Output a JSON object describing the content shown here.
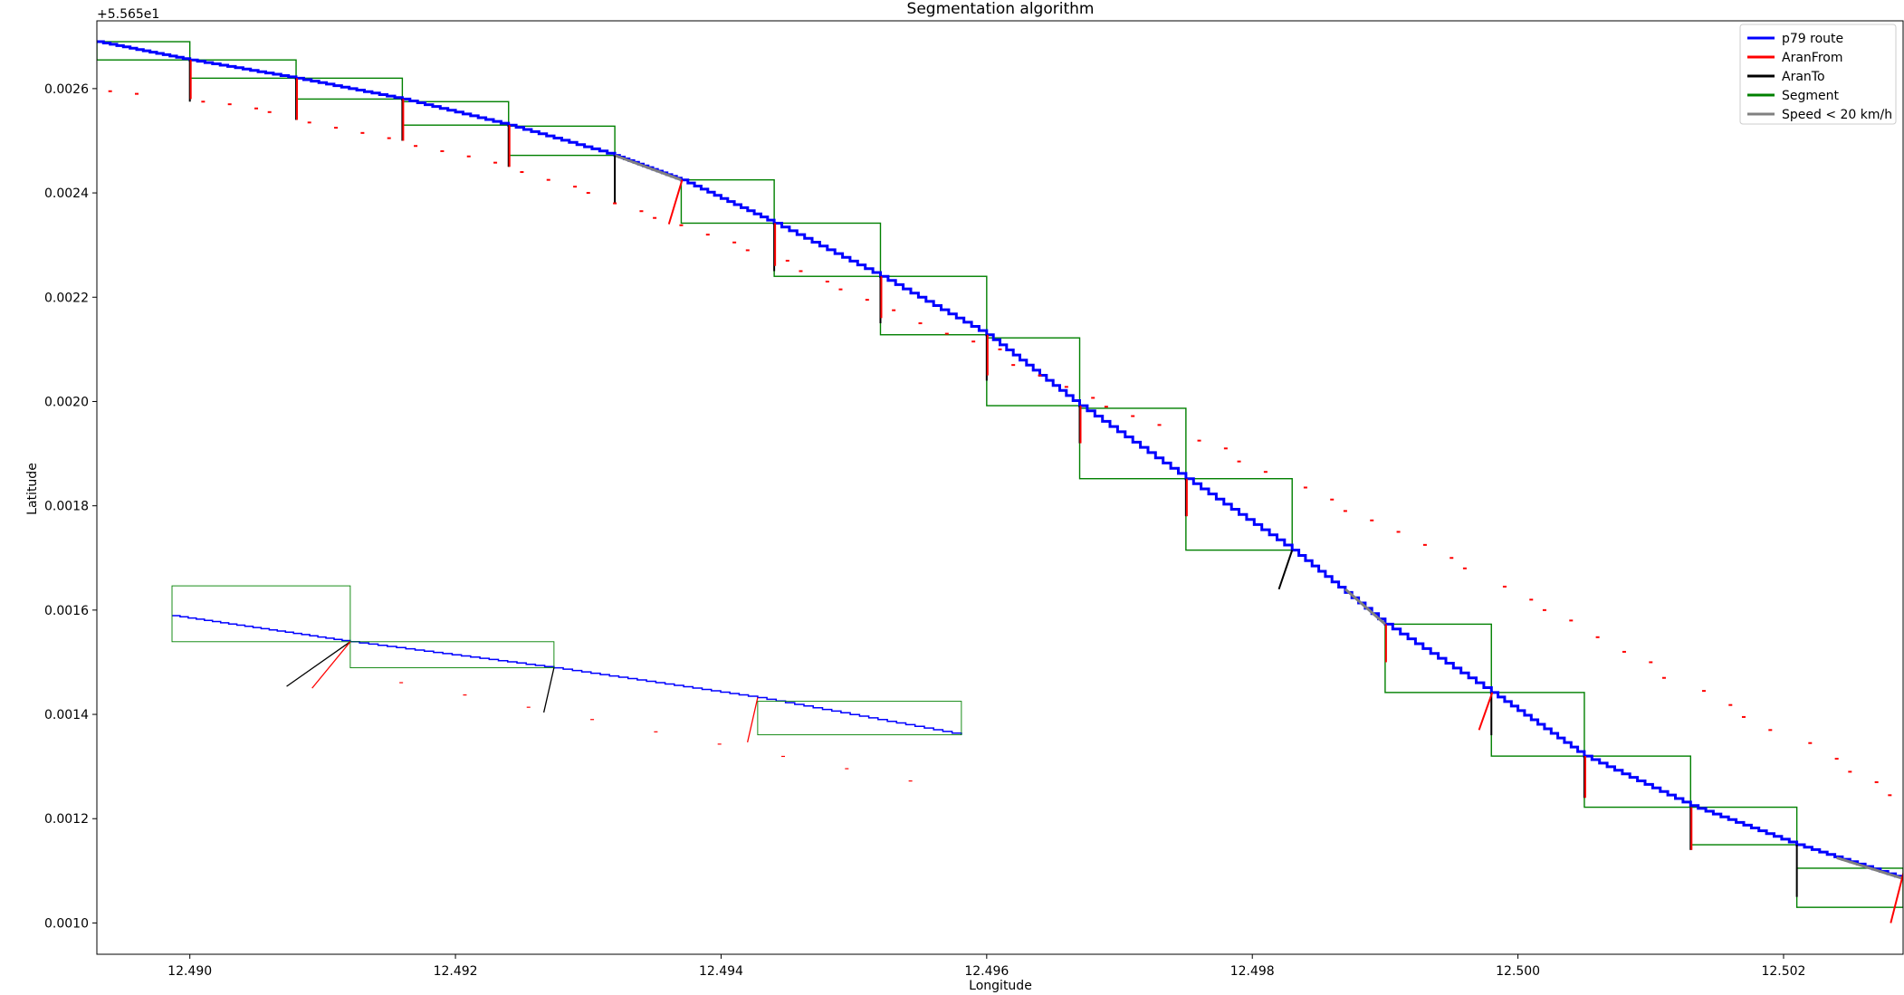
{
  "chart_data": {
    "type": "line",
    "title": "Segmentation algorithm",
    "xlabel": "Longitude",
    "ylabel": "Latitude",
    "y_offset_label": "+5.565e1",
    "xlim": [
      12.4893,
      12.5029
    ],
    "ylim": [
      0.00094,
      0.00273
    ],
    "x_ticks": [
      12.49,
      12.492,
      12.494,
      12.496,
      12.498,
      12.5,
      12.502
    ],
    "x_tick_labels": [
      "12.490",
      "12.492",
      "12.494",
      "12.496",
      "12.498",
      "12.500",
      "12.502"
    ],
    "y_ticks": [
      0.001,
      0.0012,
      0.0014,
      0.0016,
      0.0018,
      0.002,
      0.0022,
      0.0024,
      0.0026
    ],
    "y_tick_labels": [
      "0.0010",
      "0.0012",
      "0.0014",
      "0.0016",
      "0.0018",
      "0.0020",
      "0.0022",
      "0.0024",
      "0.0026"
    ],
    "legend": {
      "position": "upper right",
      "entries": [
        {
          "label": "p79 route",
          "color": "#0000ff"
        },
        {
          "label": "AranFrom",
          "color": "#ff0000"
        },
        {
          "label": "AranTo",
          "color": "#000000"
        },
        {
          "label": "Segment",
          "color": "#008000"
        },
        {
          "label": "Speed < 20 km/h",
          "color": "#808080"
        }
      ]
    },
    "colors": {
      "route": "#0000ff",
      "aran_from": "#ff0000",
      "aran_to": "#000000",
      "segment": "#008000",
      "slow": "#808080"
    },
    "route": {
      "x": [
        12.4893,
        12.49,
        12.4908,
        12.4916,
        12.4924,
        12.4932,
        12.4937,
        12.4944,
        12.4952,
        12.496,
        12.4967,
        12.4975,
        12.4983,
        12.499,
        12.4998,
        12.5005,
        12.5013,
        12.5021,
        12.5029
      ],
      "y": [
        0.00269,
        0.002655,
        0.00262,
        0.00258,
        0.00253,
        0.002472,
        0.002425,
        0.002342,
        0.00224,
        0.002128,
        0.001992,
        0.001852,
        0.001715,
        0.001573,
        0.001442,
        0.00132,
        0.001225,
        0.00115,
        0.001085
      ]
    },
    "slow_segments": [
      {
        "x": [
          12.4932,
          12.4937
        ],
        "y": [
          0.002472,
          0.002425
        ]
      },
      {
        "x": [
          12.4987,
          12.499
        ],
        "y": [
          0.00164,
          0.001573
        ]
      },
      {
        "x": [
          12.5024,
          12.5029
        ],
        "y": [
          0.001125,
          0.001085
        ]
      }
    ],
    "segments": [
      {
        "x0": 12.4893,
        "x1": 12.49,
        "y0": 0.002655,
        "y1": 0.00269
      },
      {
        "x0": 12.49,
        "x1": 12.4908,
        "y0": 0.00262,
        "y1": 0.002655
      },
      {
        "x0": 12.4908,
        "x1": 12.4916,
        "y0": 0.00258,
        "y1": 0.00262
      },
      {
        "x0": 12.4916,
        "x1": 12.4924,
        "y0": 0.00253,
        "y1": 0.002575
      },
      {
        "x0": 12.4924,
        "x1": 12.4932,
        "y0": 0.002472,
        "y1": 0.002528
      },
      {
        "x0": 12.4937,
        "x1": 12.4944,
        "y0": 0.002342,
        "y1": 0.002425
      },
      {
        "x0": 12.4944,
        "x1": 12.4952,
        "y0": 0.00224,
        "y1": 0.002342
      },
      {
        "x0": 12.4952,
        "x1": 12.496,
        "y0": 0.002128,
        "y1": 0.00224
      },
      {
        "x0": 12.496,
        "x1": 12.4967,
        "y0": 0.001992,
        "y1": 0.002122
      },
      {
        "x0": 12.4967,
        "x1": 12.4975,
        "y0": 0.001852,
        "y1": 0.001987
      },
      {
        "x0": 12.4975,
        "x1": 12.4983,
        "y0": 0.001715,
        "y1": 0.001852
      },
      {
        "x0": 12.499,
        "x1": 12.4998,
        "y0": 0.001442,
        "y1": 0.001573
      },
      {
        "x0": 12.4998,
        "x1": 12.5005,
        "y0": 0.00132,
        "y1": 0.001442
      },
      {
        "x0": 12.5005,
        "x1": 12.5013,
        "y0": 0.001222,
        "y1": 0.00132
      },
      {
        "x0": 12.5013,
        "x1": 12.5021,
        "y0": 0.00115,
        "y1": 0.001222
      },
      {
        "x0": 12.5021,
        "x1": 12.5029,
        "y0": 0.00103,
        "y1": 0.001105
      }
    ],
    "aran_from": [
      {
        "x": [
          12.49,
          12.49
        ],
        "y": [
          0.002655,
          0.00258
        ]
      },
      {
        "x": [
          12.4908,
          12.4908
        ],
        "y": [
          0.00262,
          0.00254
        ]
      },
      {
        "x": [
          12.4916,
          12.4916
        ],
        "y": [
          0.00258,
          0.0025
        ]
      },
      {
        "x": [
          12.4924,
          12.4924
        ],
        "y": [
          0.00253,
          0.00245
        ]
      },
      {
        "x": [
          12.4937,
          12.4936
        ],
        "y": [
          0.002425,
          0.00234
        ]
      },
      {
        "x": [
          12.4944,
          12.4944
        ],
        "y": [
          0.002342,
          0.00226
        ]
      },
      {
        "x": [
          12.4952,
          12.4952
        ],
        "y": [
          0.00224,
          0.00216
        ]
      },
      {
        "x": [
          12.496,
          12.496
        ],
        "y": [
          0.002128,
          0.00205
        ]
      },
      {
        "x": [
          12.4967,
          12.4967
        ],
        "y": [
          0.001992,
          0.00192
        ]
      },
      {
        "x": [
          12.4975,
          12.4975
        ],
        "y": [
          0.001852,
          0.00178
        ]
      },
      {
        "x": [
          12.499,
          12.499
        ],
        "y": [
          0.001573,
          0.0015
        ]
      },
      {
        "x": [
          12.4998,
          12.4997
        ],
        "y": [
          0.001442,
          0.00137
        ]
      },
      {
        "x": [
          12.5005,
          12.5005
        ],
        "y": [
          0.00132,
          0.00124
        ]
      },
      {
        "x": [
          12.5013,
          12.5013
        ],
        "y": [
          0.001222,
          0.00114
        ]
      },
      {
        "x": [
          12.5029,
          12.5028
        ],
        "y": [
          0.0011,
          0.001
        ]
      }
    ],
    "aran_to": [
      {
        "x": [
          12.49,
          12.49
        ],
        "y": [
          0.002655,
          0.002575
        ]
      },
      {
        "x": [
          12.4908,
          12.4908
        ],
        "y": [
          0.00262,
          0.00254
        ]
      },
      {
        "x": [
          12.4916,
          12.4916
        ],
        "y": [
          0.00258,
          0.0025
        ]
      },
      {
        "x": [
          12.4924,
          12.4924
        ],
        "y": [
          0.00253,
          0.00245
        ]
      },
      {
        "x": [
          12.4932,
          12.4932
        ],
        "y": [
          0.002472,
          0.00238
        ]
      },
      {
        "x": [
          12.4944,
          12.4944
        ],
        "y": [
          0.002342,
          0.00225
        ]
      },
      {
        "x": [
          12.4952,
          12.4952
        ],
        "y": [
          0.00224,
          0.00215
        ]
      },
      {
        "x": [
          12.496,
          12.496
        ],
        "y": [
          0.002128,
          0.00204
        ]
      },
      {
        "x": [
          12.4967,
          12.4967
        ],
        "y": [
          0.001992,
          0.00192
        ]
      },
      {
        "x": [
          12.4975,
          12.4975
        ],
        "y": [
          0.001852,
          0.00178
        ]
      },
      {
        "x": [
          12.4983,
          12.4982
        ],
        "y": [
          0.001715,
          0.00164
        ]
      },
      {
        "x": [
          12.4998,
          12.4998
        ],
        "y": [
          0.001442,
          0.00136
        ]
      },
      {
        "x": [
          12.5005,
          12.5005
        ],
        "y": [
          0.00132,
          0.00124
        ]
      },
      {
        "x": [
          12.5013,
          12.5013
        ],
        "y": [
          0.001222,
          0.00114
        ]
      },
      {
        "x": [
          12.5021,
          12.5021
        ],
        "y": [
          0.00115,
          0.00105
        ]
      }
    ],
    "aran_points": {
      "x": [
        12.4891,
        12.4892,
        12.4894,
        12.4896,
        12.4901,
        12.4903,
        12.4905,
        12.4906,
        12.4909,
        12.4911,
        12.4913,
        12.4915,
        12.4917,
        12.4919,
        12.4921,
        12.4923,
        12.4925,
        12.4927,
        12.4929,
        12.493,
        12.4932,
        12.4934,
        12.4935,
        12.4937,
        12.4939,
        12.4941,
        12.4942,
        12.4945,
        12.4946,
        12.4948,
        12.4949,
        12.4951,
        12.4953,
        12.4955,
        12.4957,
        12.4959,
        12.4961,
        12.4962,
        12.4964,
        12.4966,
        12.4968,
        12.4969,
        12.4971,
        12.4973,
        12.4976,
        12.4978,
        12.4979,
        12.4981,
        12.4984,
        12.4986,
        12.4987,
        12.4989,
        12.4991,
        12.4993,
        12.4995,
        12.4996,
        12.4999,
        12.5001,
        12.5002,
        12.5004,
        12.5006,
        12.5008,
        12.501,
        12.5011,
        12.5014,
        12.5016,
        12.5017,
        12.5019,
        12.5022,
        12.5024,
        12.5025,
        12.5027,
        12.5028
      ],
      "y": [
        0.002605,
        0.0026,
        0.002595,
        0.00259,
        0.002575,
        0.00257,
        0.002562,
        0.002555,
        0.002535,
        0.002525,
        0.002515,
        0.002505,
        0.00249,
        0.00248,
        0.00247,
        0.002458,
        0.00244,
        0.002425,
        0.002412,
        0.0024,
        0.00238,
        0.002365,
        0.002352,
        0.002338,
        0.00232,
        0.002305,
        0.00229,
        0.00227,
        0.00225,
        0.00223,
        0.002215,
        0.002195,
        0.002175,
        0.00215,
        0.00213,
        0.002115,
        0.0021,
        0.00207,
        0.00205,
        0.002028,
        0.002007,
        0.00199,
        0.001972,
        0.001955,
        0.001925,
        0.00191,
        0.001885,
        0.001865,
        0.001835,
        0.001812,
        0.00179,
        0.001772,
        0.00175,
        0.001725,
        0.0017,
        0.00168,
        0.001645,
        0.00162,
        0.0016,
        0.00158,
        0.001548,
        0.00152,
        0.0015,
        0.00147,
        0.001445,
        0.001418,
        0.001395,
        0.00137,
        0.001345,
        0.001315,
        0.00129,
        0.00127,
        0.001245
      ]
    }
  }
}
